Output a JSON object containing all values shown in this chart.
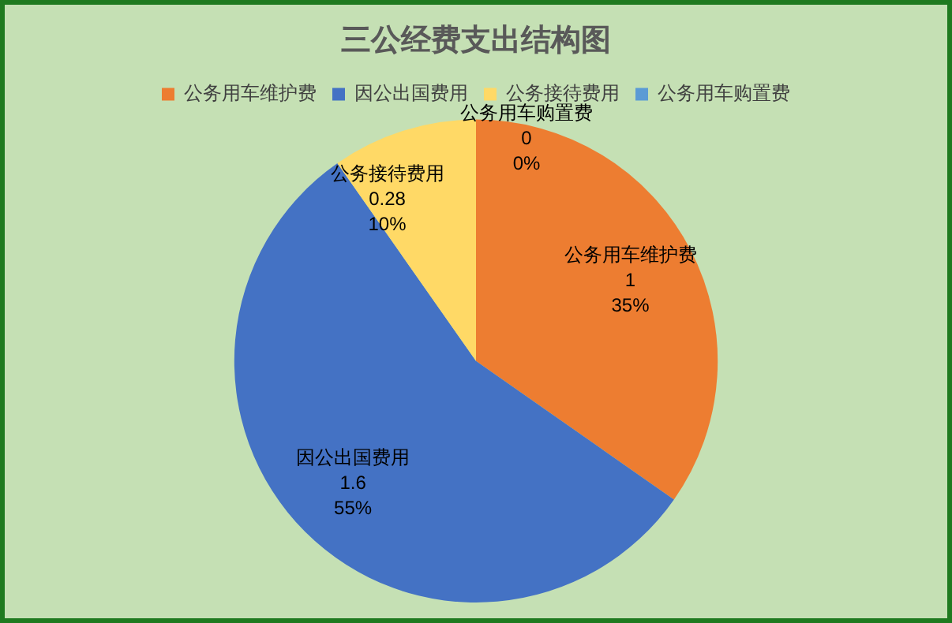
{
  "chart_data": {
    "type": "pie",
    "title": "三公经费支出结构图",
    "categories": [
      "公务用车维护费",
      "因公出国费用",
      "公务接待费用",
      "公务用车购置费"
    ],
    "values": [
      1,
      1.6,
      0.28,
      0
    ],
    "colors": [
      "#ed7d31",
      "#4472c4",
      "#ffd966",
      "#5b9bd5"
    ],
    "value_labels": [
      "1\n35%",
      "1.6\n55%",
      "0.28\n10%",
      "0\n0%"
    ],
    "legend": "top"
  }
}
